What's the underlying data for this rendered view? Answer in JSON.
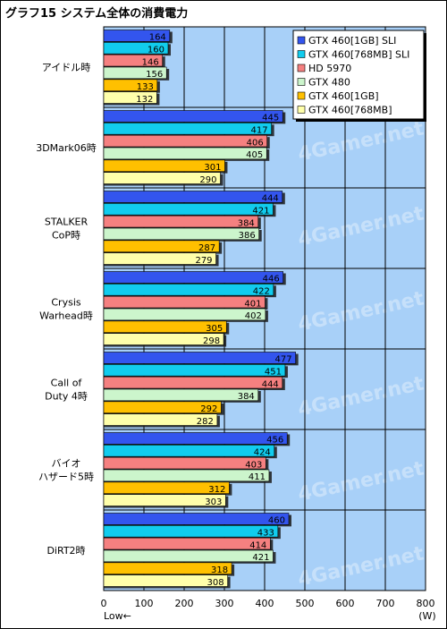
{
  "chart_data": {
    "type": "bar",
    "orientation": "horizontal",
    "title": "グラフ15 システム全体の消費電力",
    "categories": [
      [
        "アイドル時"
      ],
      [
        "3DMark06時"
      ],
      [
        "STALKER",
        "CoP時"
      ],
      [
        "Crysis",
        "Warhead時"
      ],
      [
        "Call of",
        "Duty 4時"
      ],
      [
        "バイオ",
        "ハザード5時"
      ],
      [
        "DiRT2時"
      ]
    ],
    "series": [
      {
        "name": "GTX 460[1GB] SLI",
        "color": "#3355ee",
        "values": [
          164,
          445,
          444,
          446,
          477,
          456,
          460
        ]
      },
      {
        "name": "GTX 460[768MB] SLI",
        "color": "#11ccee",
        "values": [
          160,
          417,
          421,
          422,
          451,
          424,
          433
        ]
      },
      {
        "name": "HD 5970",
        "color": "#f58080",
        "values": [
          146,
          406,
          384,
          401,
          444,
          403,
          414
        ]
      },
      {
        "name": "GTX 480",
        "color": "#ccf5cc",
        "values": [
          156,
          405,
          386,
          402,
          384,
          411,
          421
        ]
      },
      {
        "name": "GTX 460[1GB]",
        "color": "#ffc000",
        "values": [
          133,
          301,
          287,
          305,
          292,
          312,
          318
        ]
      },
      {
        "name": "GTX 460[768MB]",
        "color": "#ffffaa",
        "values": [
          132,
          290,
          279,
          298,
          282,
          303,
          308
        ]
      }
    ],
    "xlim": [
      0,
      800
    ],
    "xticks": [
      0,
      100,
      200,
      300,
      400,
      500,
      600,
      700,
      800
    ],
    "xlabel_left": "Low←",
    "xunit": "(W)",
    "plot_background": "#a8d0f8",
    "grid": true,
    "legend_position": "top-right",
    "watermark": "4Gamer.net"
  }
}
